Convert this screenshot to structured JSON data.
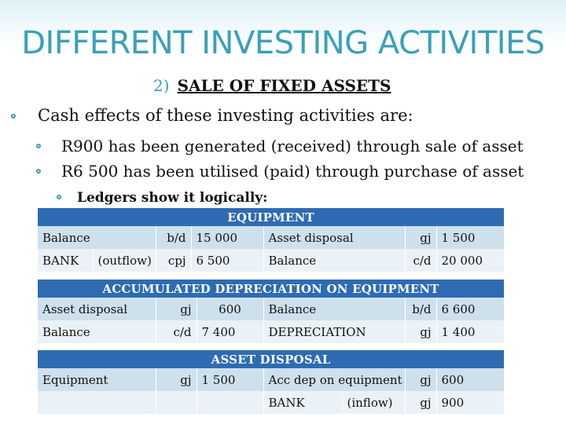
{
  "title": "DIFFERENT INVESTING ACTIVITIES",
  "section": {
    "number": "2)",
    "heading": "SALE OF FIXED ASSETS"
  },
  "bullets": {
    "intro": "Cash effects of these investing activities are:",
    "item1": "R900 has been generated (received) through sale of asset",
    "item2": "R6 500 has been utilised (paid) through purchase of asset",
    "item3": "Ledgers show it logically:"
  },
  "accent_color": "#3aa0b8",
  "table_header_color": "#2e6bb3",
  "ledgers": {
    "equipment": {
      "title": "EQUIPMENT",
      "rows": [
        {
          "dr_account": "Balance",
          "dr_ref": "b/d",
          "dr_amount": "15 000",
          "cr_account": "Asset disposal",
          "cr_ref": "gj",
          "cr_amount": "1 500"
        },
        {
          "dr_account": "BANK",
          "dr_note": "(outflow)",
          "dr_ref": "cpj",
          "dr_amount": "6 500",
          "cr_account": "Balance",
          "cr_ref": "c/d",
          "cr_amount": "20 000"
        }
      ]
    },
    "acc_dep": {
      "title": "ACCUMULATED DEPRECIATION ON EQUIPMENT",
      "rows": [
        {
          "dr_account": "Asset disposal",
          "dr_ref": "gj",
          "dr_amount": "600",
          "cr_account": "Balance",
          "cr_ref": "b/d",
          "cr_amount": "6 600"
        },
        {
          "dr_account": "Balance",
          "dr_ref": "c/d",
          "dr_amount": "7 400",
          "cr_account": "DEPRECIATION",
          "cr_ref": "gj",
          "cr_amount": "1 400"
        }
      ]
    },
    "disposal": {
      "title": "ASSET DISPOSAL",
      "rows": [
        {
          "dr_account": "Equipment",
          "dr_ref": "gj",
          "dr_amount": "1 500",
          "cr_account": "Acc dep on equipment",
          "cr_ref": "gj",
          "cr_amount": "600"
        },
        {
          "dr_account": "",
          "dr_ref": "",
          "dr_amount": "",
          "cr_account": "BANK",
          "cr_note": "(inflow)",
          "cr_ref": "gj",
          "cr_amount": "900"
        }
      ]
    }
  }
}
